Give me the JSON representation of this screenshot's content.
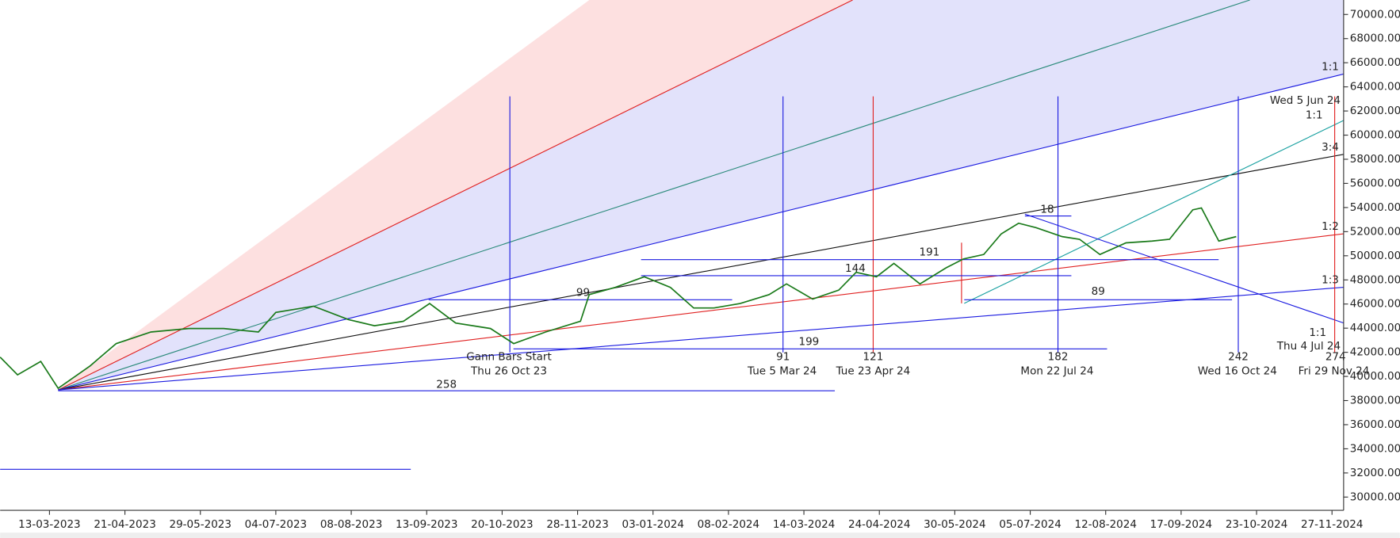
{
  "chart_data": {
    "type": "line",
    "color": "#1a7a1a",
    "x": [
      -17,
      -11,
      -3,
      3,
      14,
      23,
      35,
      48,
      60,
      72,
      78,
      91,
      103,
      112,
      122,
      131,
      140,
      152,
      160,
      171,
      183,
      186,
      195,
      205,
      214,
      222,
      229,
      238,
      248,
      254,
      263,
      272,
      278,
      285,
      291,
      300,
      309,
      315,
      322,
      328,
      334,
      340,
      349,
      355,
      362,
      371,
      380,
      386,
      394,
      397,
      403,
      409
    ],
    "values": [
      41600,
      40130,
      41240,
      39020,
      40870,
      42720,
      43680,
      43970,
      43970,
      43680,
      45300,
      45820,
      44710,
      44200,
      44570,
      46040,
      44420,
      43970,
      42720,
      43680,
      44570,
      46780,
      47380,
      48260,
      47380,
      45670,
      45670,
      46040,
      46780,
      47670,
      46410,
      47150,
      48630,
      48260,
      49370,
      47670,
      49000,
      49740,
      50110,
      51810,
      52700,
      52330,
      51590,
      51370,
      50110,
      51070,
      51220,
      51370,
      53810,
      53960,
      51220,
      51590
    ],
    "xlim": [
      -17,
      446
    ],
    "xticks": [
      {
        "value": 0,
        "label": "13-03-2023"
      },
      {
        "value": 26,
        "label": "21-04-2023"
      },
      {
        "value": 52,
        "label": "29-05-2023"
      },
      {
        "value": 78,
        "label": "04-07-2023"
      },
      {
        "value": 104,
        "label": "08-08-2023"
      },
      {
        "value": 130,
        "label": "13-09-2023"
      },
      {
        "value": 156,
        "label": "20-10-2023"
      },
      {
        "value": 182,
        "label": "28-11-2023"
      },
      {
        "value": 208,
        "label": "03-01-2024"
      },
      {
        "value": 234,
        "label": "08-02-2024"
      },
      {
        "value": 260,
        "label": "14-03-2024"
      },
      {
        "value": 286,
        "label": "24-04-2024"
      },
      {
        "value": 312,
        "label": "30-05-2024"
      },
      {
        "value": 338,
        "label": "05-07-2024"
      },
      {
        "value": 364,
        "label": "12-08-2024"
      },
      {
        "value": 390,
        "label": "17-09-2024"
      },
      {
        "value": 416,
        "label": "23-10-2024"
      },
      {
        "value": 442,
        "label": "27-11-2024"
      }
    ],
    "ylim": [
      28900,
      71200
    ],
    "yticks": [
      {
        "value": 30000,
        "label": "30000.00"
      },
      {
        "value": 32000,
        "label": "32000.00"
      },
      {
        "value": 34000,
        "label": "34000.00"
      },
      {
        "value": 36000,
        "label": "36000.00"
      },
      {
        "value": 38000,
        "label": "38000.00"
      },
      {
        "value": 40000,
        "label": "40000.00"
      },
      {
        "value": 42000,
        "label": "42000.00"
      },
      {
        "value": 44000,
        "label": "44000.00"
      },
      {
        "value": 46000,
        "label": "46000.00"
      },
      {
        "value": 48000,
        "label": "48000.00"
      },
      {
        "value": 50000,
        "label": "50000.00"
      },
      {
        "value": 52000,
        "label": "52000.00"
      },
      {
        "value": 54000,
        "label": "54000.00"
      },
      {
        "value": 56000,
        "label": "56000.00"
      },
      {
        "value": 58000,
        "label": "58000.00"
      },
      {
        "value": 60000,
        "label": "60000.00"
      },
      {
        "value": 62000,
        "label": "62000.00"
      },
      {
        "value": 64000,
        "label": "64000.00"
      },
      {
        "value": 66000,
        "label": "66000.00"
      },
      {
        "value": 68000,
        "label": "68000.00"
      },
      {
        "value": 70000,
        "label": "70000.00"
      }
    ],
    "annotations": [
      "1:1",
      "Wed 5 Jun 24",
      "1:1",
      "3:4",
      "1:2",
      "1:3",
      "1:1",
      "Thu 4 Jul 24",
      "274",
      "Fri 29 Nov 24",
      "242",
      "Wed 16 Oct 24",
      "182",
      "Mon 22 Jul 24",
      "121",
      "Tue 23 Apr 24",
      "91",
      "Tue 5 Mar 24",
      "Gann Bars Start",
      "Thu 26 Oct 23",
      "258",
      "199",
      "89",
      "191",
      "144",
      "99",
      "18"
    ]
  }
}
